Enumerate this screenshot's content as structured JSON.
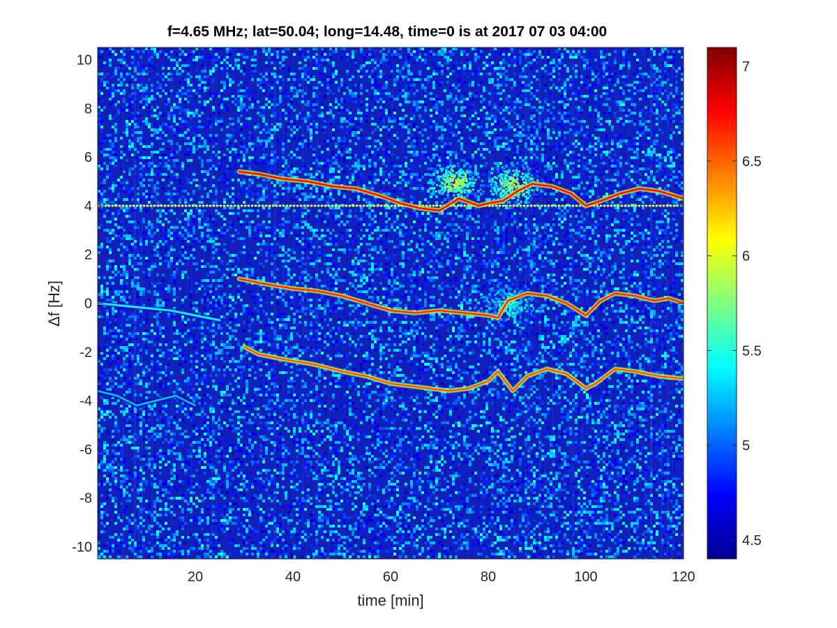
{
  "chart_data": {
    "type": "heatmap",
    "title": "f=4.65 MHz;  lat=50.04; long=14.48, time=0 is at 2017 07 03 04:00",
    "xlabel": "time [min]",
    "ylabel": "Δf [Hz]",
    "xlim": [
      0,
      120
    ],
    "ylim": [
      -10.5,
      10.5
    ],
    "x_ticks": [
      20,
      40,
      60,
      80,
      100,
      120
    ],
    "y_ticks": [
      -10,
      -8,
      -6,
      -4,
      -2,
      0,
      2,
      4,
      6,
      8,
      10
    ],
    "colorbar": {
      "colormap": "jet",
      "clim": [
        4.4,
        7.1
      ],
      "ticks": [
        4.5,
        5,
        5.5,
        6,
        6.5,
        7
      ]
    },
    "background_level": 4.6,
    "traces": [
      {
        "description": "constant carrier line",
        "points": [
          [
            0,
            4.0
          ],
          [
            120,
            4.0
          ]
        ],
        "level": 6.0
      },
      {
        "description": "upper echo trace",
        "points": [
          [
            29,
            5.4
          ],
          [
            33,
            5.3
          ],
          [
            38,
            5.1
          ],
          [
            43,
            5.0
          ],
          [
            48,
            4.8
          ],
          [
            53,
            4.7
          ],
          [
            58,
            4.4
          ],
          [
            62,
            4.1
          ],
          [
            66,
            3.9
          ],
          [
            70,
            3.8
          ],
          [
            74,
            4.3
          ],
          [
            78,
            4.0
          ],
          [
            80,
            4.1
          ],
          [
            83,
            4.2
          ],
          [
            86,
            4.6
          ],
          [
            89,
            4.9
          ],
          [
            93,
            4.8
          ],
          [
            97,
            4.5
          ],
          [
            100,
            4.0
          ],
          [
            103,
            4.2
          ],
          [
            107,
            4.5
          ],
          [
            111,
            4.7
          ],
          [
            115,
            4.6
          ],
          [
            120,
            4.3
          ]
        ],
        "level": 6.8
      },
      {
        "description": "middle echo trace",
        "points": [
          [
            29,
            1.0
          ],
          [
            34,
            0.8
          ],
          [
            40,
            0.6
          ],
          [
            45,
            0.5
          ],
          [
            50,
            0.3
          ],
          [
            55,
            0.0
          ],
          [
            60,
            -0.3
          ],
          [
            65,
            -0.4
          ],
          [
            70,
            -0.3
          ],
          [
            75,
            -0.4
          ],
          [
            80,
            -0.5
          ],
          [
            82,
            -0.6
          ],
          [
            84,
            0.1
          ],
          [
            88,
            0.4
          ],
          [
            92,
            0.3
          ],
          [
            96,
            0.0
          ],
          [
            100,
            -0.5
          ],
          [
            103,
            0.1
          ],
          [
            106,
            0.4
          ],
          [
            110,
            0.3
          ],
          [
            114,
            0.1
          ],
          [
            117,
            0.2
          ],
          [
            120,
            0.0
          ]
        ],
        "level": 6.7
      },
      {
        "description": "lower echo trace",
        "points": [
          [
            30,
            -1.8
          ],
          [
            33,
            -2.1
          ],
          [
            38,
            -2.3
          ],
          [
            44,
            -2.5
          ],
          [
            50,
            -2.8
          ],
          [
            55,
            -3.0
          ],
          [
            60,
            -3.3
          ],
          [
            64,
            -3.4
          ],
          [
            68,
            -3.5
          ],
          [
            72,
            -3.6
          ],
          [
            76,
            -3.5
          ],
          [
            80,
            -3.2
          ],
          [
            82,
            -2.8
          ],
          [
            85,
            -3.6
          ],
          [
            88,
            -3.0
          ],
          [
            92,
            -2.7
          ],
          [
            96,
            -2.9
          ],
          [
            100,
            -3.5
          ],
          [
            102,
            -3.3
          ],
          [
            106,
            -2.7
          ],
          [
            110,
            -2.8
          ],
          [
            115,
            -3.0
          ],
          [
            120,
            -3.1
          ]
        ],
        "level": 6.6
      },
      {
        "description": "left faint trace",
        "points": [
          [
            0,
            0.0
          ],
          [
            5,
            -0.1
          ],
          [
            10,
            -0.2
          ],
          [
            15,
            -0.3
          ],
          [
            20,
            -0.5
          ],
          [
            25,
            -0.7
          ]
        ],
        "level": 5.5
      },
      {
        "description": "left lower faint trace",
        "points": [
          [
            0,
            -3.6
          ],
          [
            4,
            -3.8
          ],
          [
            8,
            -4.2
          ],
          [
            12,
            -4.0
          ],
          [
            16,
            -3.8
          ],
          [
            20,
            -4.2
          ]
        ],
        "level": 5.3
      }
    ],
    "diffuse_regions": [
      {
        "center": [
          73,
          5.0
        ],
        "spread": [
          4,
          0.6
        ],
        "level": 6.0
      },
      {
        "center": [
          85,
          4.9
        ],
        "spread": [
          5,
          0.7
        ],
        "level": 5.9
      },
      {
        "center": [
          84,
          0.0
        ],
        "spread": [
          5,
          0.8
        ],
        "level": 5.6
      }
    ]
  }
}
